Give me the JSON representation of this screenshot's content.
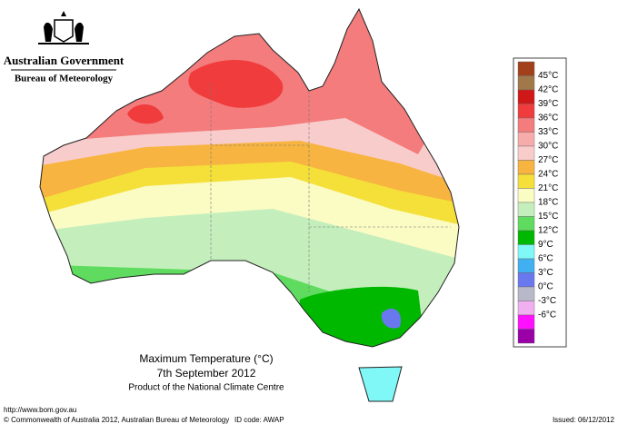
{
  "header": {
    "government": "Australian Government",
    "bureau": "Bureau of Meteorology"
  },
  "title": "Maximum Temperature (°C)",
  "date": "7th September 2012",
  "product": "Product of the National Climate Centre",
  "legend": {
    "labels": [
      "45°C",
      "42°C",
      "39°C",
      "36°C",
      "33°C",
      "30°C",
      "27°C",
      "24°C",
      "21°C",
      "18°C",
      "15°C",
      "12°C",
      "9°C",
      "6°C",
      "3°C",
      "0°C",
      "-3°C",
      "-6°C"
    ],
    "colors": [
      "#a3401c",
      "#a0784a",
      "#d01818",
      "#f03c3c",
      "#f47c7c",
      "#f7acac",
      "#f9cccc",
      "#f7b440",
      "#f5e03a",
      "#fbfbc4",
      "#c4efbc",
      "#5fdc5f",
      "#00b800",
      "#80f8f8",
      "#40b0f0",
      "#6a78f0",
      "#b8b8c8",
      "#f0b0f0",
      "#ff10ff",
      "#9a00a8"
    ]
  },
  "footer": {
    "url": "http://www.bom.gov.au",
    "copyright": "© Commonwealth of Australia 2012, Australian Bureau of Meteorology",
    "id_code": "ID code: AWAP",
    "issued": "Issued: 06/12/2012"
  }
}
